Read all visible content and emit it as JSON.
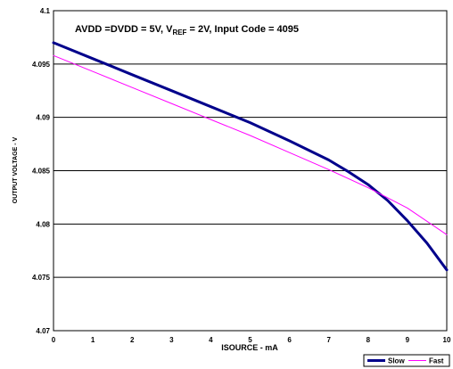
{
  "chart_data": {
    "type": "line",
    "annotation": {
      "prefix": "AVDD =DVDD = 5V, V",
      "subscript": "REF",
      "suffix": " = 2V, Input Code = 4095"
    },
    "xlabel": "ISOURCE - mA",
    "ylabel": "OUTPUT VOLTAGE - V",
    "xlim": [
      0,
      10
    ],
    "ylim": [
      4.07,
      4.1
    ],
    "x_ticks": [
      "0",
      "1",
      "2",
      "3",
      "4",
      "5",
      "6",
      "7",
      "8",
      "9",
      "10"
    ],
    "y_ticks": [
      "4.07",
      "4.075",
      "4.08",
      "4.085",
      "4.09",
      "4.095",
      "4.1"
    ],
    "grid": "horizontal",
    "legend_position": "bottom-right",
    "series": [
      {
        "name": "Slow",
        "color": "#00008B",
        "x": [
          0,
          1,
          2,
          3,
          4,
          5,
          6,
          7,
          7.5,
          8,
          8.5,
          9,
          9.5,
          10
        ],
        "y": [
          4.097,
          4.0955,
          4.094,
          4.0925,
          4.091,
          4.0895,
          4.0878,
          4.086,
          4.0849,
          4.0837,
          4.0822,
          4.0803,
          4.0782,
          4.0757
        ]
      },
      {
        "name": "Fast",
        "color": "#FF00FF",
        "x": [
          0,
          1,
          2,
          3,
          4,
          5,
          6,
          7,
          8,
          9,
          10
        ],
        "y": [
          4.0958,
          4.0943,
          4.0928,
          4.0913,
          4.0898,
          4.0883,
          4.0867,
          4.0851,
          4.0834,
          4.0815,
          4.079
        ]
      }
    ]
  }
}
